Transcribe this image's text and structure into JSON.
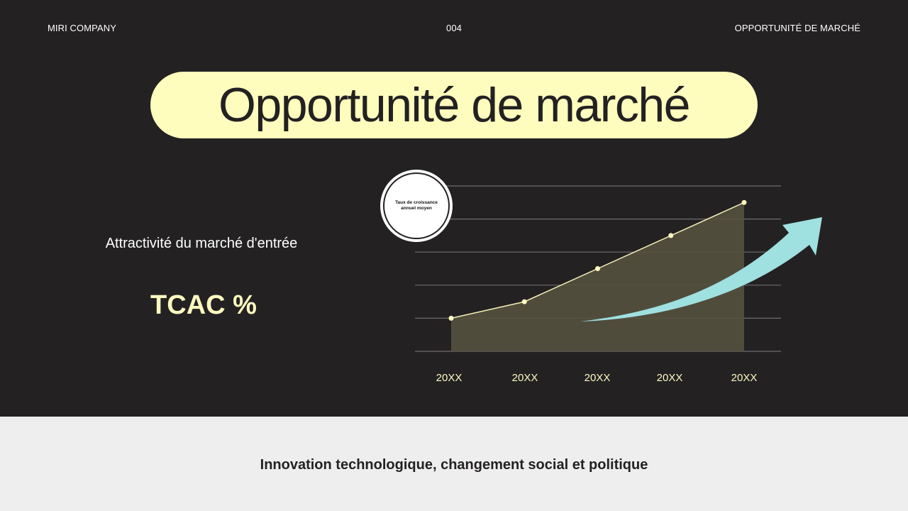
{
  "header": {
    "company": "MIRI COMPANY",
    "page_number": "004",
    "section": "OPPORTUNITÉ DE MARCHÉ"
  },
  "title": "Opportunité de marché",
  "left_panel": {
    "subtitle": "Attractivité du marché d'entrée",
    "kpi": "TCAC %"
  },
  "badge_text": "Taux de croissance annuel moyen",
  "footer_text": "Innovation technologique, changement social et politique",
  "colors": {
    "background": "#232122",
    "accent_yellow": "#fefdbd",
    "area_fill": "#55513f",
    "line": "#f2efb6",
    "arrow": "#9fe0e0",
    "footer_bg": "#efeeee"
  },
  "chart_data": {
    "type": "area",
    "categories": [
      "20XX",
      "20XX",
      "20XX",
      "20XX",
      "20XX"
    ],
    "values": [
      1,
      1.5,
      2.5,
      3.5,
      4.5
    ],
    "ylim": [
      0,
      5
    ],
    "grid": true,
    "trend_arrow": "upward",
    "title": "",
    "xlabel": "",
    "ylabel": ""
  }
}
